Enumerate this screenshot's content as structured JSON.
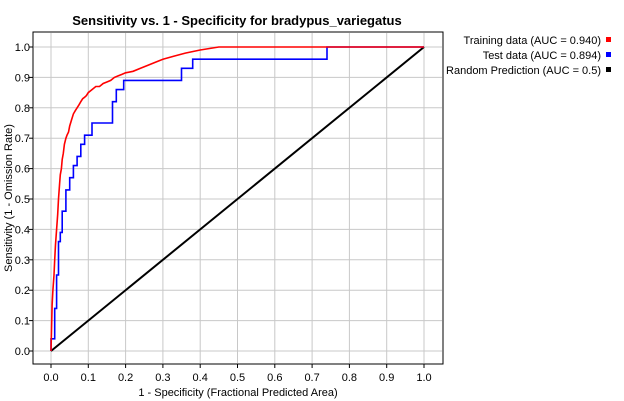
{
  "chart_data": {
    "type": "line",
    "title": "Sensitivity vs. 1 - Specificity for bradypus_variegatus",
    "xlabel": "1 - Specificity  (Fractional Predicted Area)",
    "ylabel": "Sensitivity  (1 - Omission Rate)",
    "xlim": [
      0,
      1
    ],
    "ylim": [
      0,
      1
    ],
    "x_ticks": [
      "0.0",
      "0.1",
      "0.2",
      "0.3",
      "0.4",
      "0.5",
      "0.6",
      "0.7",
      "0.8",
      "0.9",
      "1.0"
    ],
    "y_ticks": [
      "0.0",
      "0.1",
      "0.2",
      "0.3",
      "0.4",
      "0.5",
      "0.6",
      "0.7",
      "0.8",
      "0.9",
      "1.0"
    ],
    "grid": true,
    "legend_position": "right",
    "series": [
      {
        "name": "Training data (AUC = 0.940)",
        "color": "#ff0000",
        "x": [
          0.0,
          0.003,
          0.005,
          0.008,
          0.01,
          0.012,
          0.015,
          0.018,
          0.02,
          0.023,
          0.025,
          0.028,
          0.03,
          0.033,
          0.036,
          0.04,
          0.043,
          0.047,
          0.05,
          0.055,
          0.06,
          0.065,
          0.07,
          0.075,
          0.08,
          0.085,
          0.09,
          0.095,
          0.1,
          0.11,
          0.12,
          0.13,
          0.14,
          0.15,
          0.16,
          0.17,
          0.18,
          0.19,
          0.2,
          0.22,
          0.24,
          0.26,
          0.28,
          0.3,
          0.33,
          0.36,
          0.4,
          0.45,
          0.5,
          0.6,
          0.7,
          0.8,
          0.9,
          1.0
        ],
        "y": [
          0.0,
          0.15,
          0.2,
          0.25,
          0.3,
          0.35,
          0.4,
          0.45,
          0.5,
          0.55,
          0.58,
          0.6,
          0.63,
          0.65,
          0.68,
          0.7,
          0.71,
          0.72,
          0.74,
          0.76,
          0.78,
          0.79,
          0.8,
          0.81,
          0.82,
          0.83,
          0.835,
          0.84,
          0.85,
          0.86,
          0.87,
          0.87,
          0.88,
          0.885,
          0.89,
          0.9,
          0.905,
          0.91,
          0.915,
          0.92,
          0.93,
          0.94,
          0.95,
          0.96,
          0.97,
          0.98,
          0.99,
          1.0,
          1.0,
          1.0,
          1.0,
          1.0,
          1.0,
          1.0
        ]
      },
      {
        "name": "Test data (AUC = 0.894)",
        "color": "#0000ff",
        "x": [
          0.0,
          0.0,
          0.01,
          0.01,
          0.015,
          0.015,
          0.02,
          0.02,
          0.025,
          0.025,
          0.03,
          0.03,
          0.04,
          0.04,
          0.05,
          0.05,
          0.06,
          0.06,
          0.07,
          0.07,
          0.08,
          0.08,
          0.09,
          0.09,
          0.11,
          0.11,
          0.165,
          0.165,
          0.175,
          0.175,
          0.195,
          0.195,
          0.35,
          0.35,
          0.38,
          0.38,
          0.74,
          0.74,
          1.0
        ],
        "y": [
          0.0,
          0.04,
          0.04,
          0.14,
          0.14,
          0.25,
          0.25,
          0.36,
          0.36,
          0.39,
          0.39,
          0.46,
          0.46,
          0.53,
          0.53,
          0.57,
          0.57,
          0.61,
          0.61,
          0.64,
          0.64,
          0.68,
          0.68,
          0.71,
          0.71,
          0.75,
          0.75,
          0.82,
          0.82,
          0.86,
          0.86,
          0.89,
          0.89,
          0.93,
          0.93,
          0.96,
          0.96,
          1.0,
          1.0
        ]
      },
      {
        "name": "Random Prediction (AUC = 0.5)",
        "color": "#000000",
        "x": [
          0.0,
          1.0
        ],
        "y": [
          0.0,
          1.0
        ]
      }
    ]
  }
}
